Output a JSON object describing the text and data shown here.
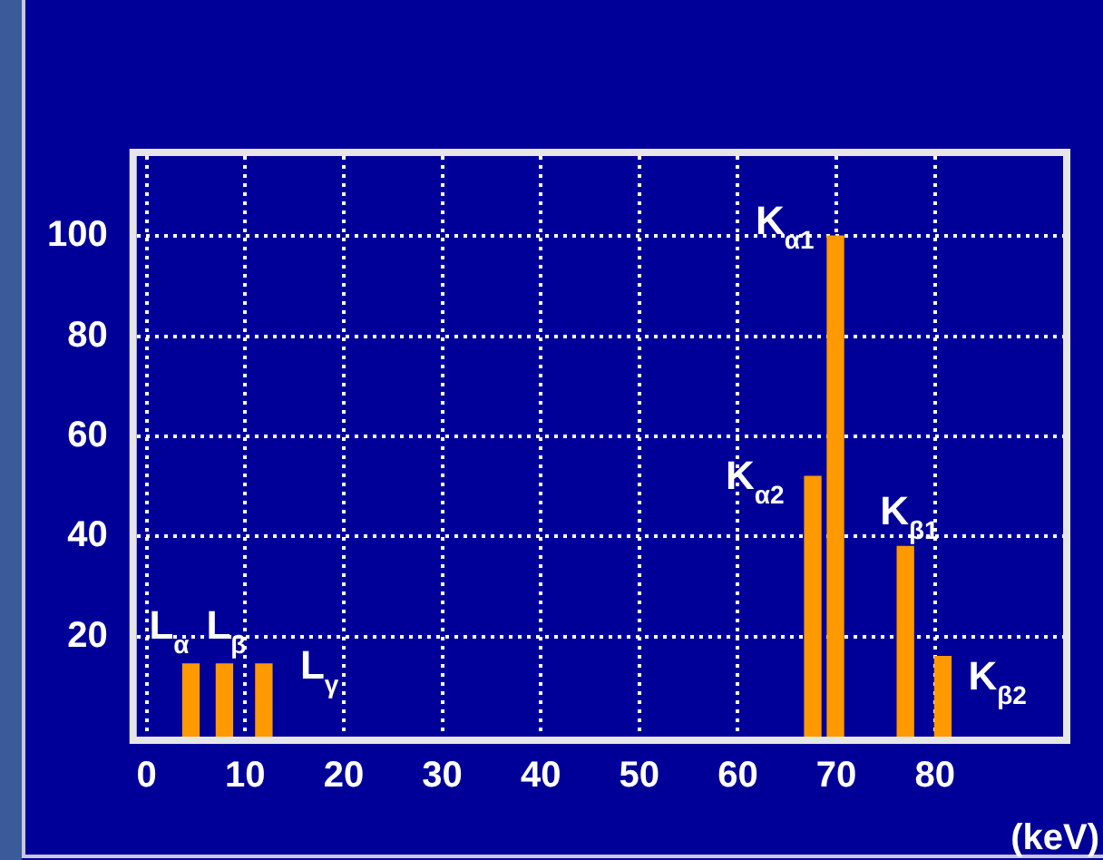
{
  "chart_data": {
    "type": "bar",
    "xlabel": "(keV)",
    "x": [
      4.5,
      7.9,
      11.9,
      67.6,
      69.9,
      77,
      80.8
    ],
    "values": [
      14.5,
      14.5,
      14.5,
      52,
      100,
      38,
      16
    ],
    "color": "#ff9900",
    "xlim": [
      -1,
      93
    ],
    "xticks": [
      0,
      10,
      20,
      30,
      40,
      50,
      60,
      70,
      80
    ],
    "ylim": [
      0,
      116
    ],
    "yticks": [
      20,
      40,
      60,
      80,
      100
    ],
    "grid": true,
    "legend": false,
    "annotations": [
      {
        "text": "L$_{α}$",
        "x": 4.5,
        "y": 14.5
      },
      {
        "text": "L$_{β}$",
        "x": 7.9,
        "y": 14.5
      },
      {
        "text": "L$_{γ}$",
        "x": 11.9,
        "y": 14.5
      },
      {
        "text": "K$_{α2}$",
        "x": 67.6,
        "y": 52
      },
      {
        "text": "K$_{α1}$",
        "x": 69.9,
        "y": 100
      },
      {
        "text": "K$_{β1}$",
        "x": 77,
        "y": 38
      },
      {
        "text": "K$_{β2}$",
        "x": 80.8,
        "y": 16
      }
    ]
  }
}
